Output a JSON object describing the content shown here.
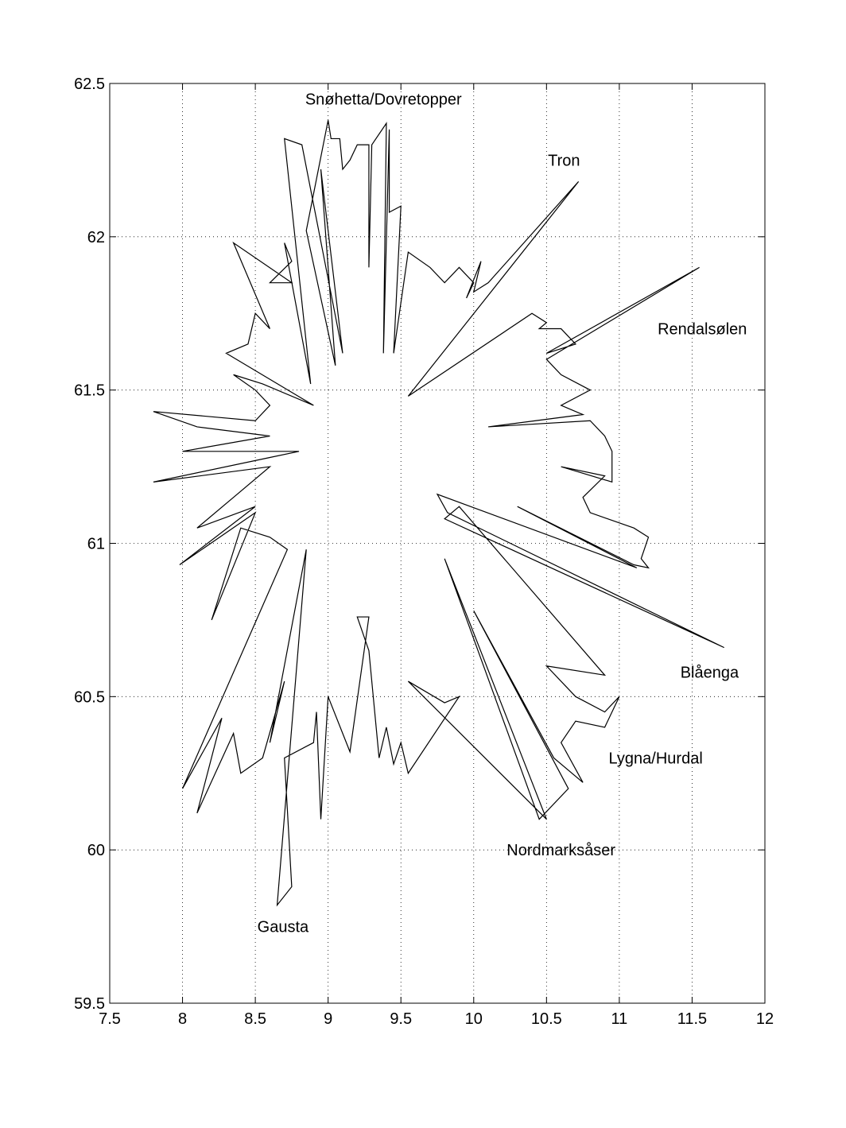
{
  "chart_data": {
    "type": "line",
    "xlim": [
      7.5,
      12
    ],
    "ylim": [
      59.5,
      62.5
    ],
    "xticks": [
      7.5,
      8,
      8.5,
      9,
      9.5,
      10,
      10.5,
      11,
      11.5,
      12
    ],
    "yticks": [
      59.5,
      60,
      60.5,
      61,
      61.5,
      62,
      62.5
    ],
    "grid": true,
    "series": [
      {
        "color": "#000000",
        "x": [
          9.0,
          9.02,
          9.08,
          9.1,
          9.15,
          9.2,
          9.28,
          9.28,
          9.3,
          9.4,
          9.38,
          9.42,
          9.42,
          9.5,
          9.45,
          9.55,
          9.7,
          9.8,
          9.9,
          10.0,
          9.95,
          10.05,
          10.0,
          10.1,
          10.72,
          9.55,
          10.4,
          10.5,
          10.45,
          10.6,
          10.7,
          10.5,
          11.55,
          10.5,
          10.6,
          10.8,
          10.6,
          10.75,
          10.1,
          10.8,
          10.9,
          10.95,
          10.95,
          10.6,
          10.9,
          10.75,
          10.8,
          11.1,
          11.2,
          11.15,
          11.2,
          11.1,
          10.3,
          11.12,
          9.75,
          9.82,
          11.72,
          9.8,
          9.9,
          10.9,
          10.5,
          10.7,
          10.9,
          11.0,
          10.9,
          10.7,
          10.6,
          10.75,
          10.55,
          10.0,
          10.65,
          10.45,
          9.8,
          10.5,
          9.55,
          9.8,
          9.9,
          9.55,
          9.5,
          9.45,
          9.4,
          9.35,
          9.28,
          9.2,
          9.28,
          9.15,
          9.0,
          8.95,
          8.92,
          8.9,
          8.7,
          8.75,
          8.65,
          8.85,
          8.6,
          8.7,
          8.55,
          8.4,
          8.35,
          8.1,
          8.27,
          8.0,
          8.72,
          8.6,
          8.4,
          8.2,
          8.5,
          7.98,
          8.5,
          8.1,
          8.35,
          8.6,
          7.8,
          8.6,
          8.8,
          8.0,
          8.6,
          8.1,
          7.8,
          8.5,
          8.6,
          8.5,
          8.35,
          8.55,
          8.9,
          8.3,
          8.45,
          8.5,
          8.6,
          8.35,
          8.75,
          8.6,
          8.75,
          8.7,
          8.88,
          8.7,
          8.82,
          9.1,
          8.95,
          9.05,
          8.85,
          9.0
        ],
        "values": [
          62.38,
          62.32,
          62.32,
          62.22,
          62.25,
          62.3,
          62.3,
          61.9,
          62.3,
          62.37,
          61.62,
          62.35,
          62.08,
          62.1,
          61.62,
          61.95,
          61.9,
          61.85,
          61.9,
          61.85,
          61.8,
          61.92,
          61.82,
          61.85,
          62.18,
          61.48,
          61.75,
          61.72,
          61.7,
          61.7,
          61.65,
          61.62,
          61.9,
          61.6,
          61.55,
          61.5,
          61.45,
          61.42,
          61.38,
          61.4,
          61.35,
          61.3,
          61.2,
          61.25,
          61.22,
          61.15,
          61.1,
          61.05,
          61.02,
          60.95,
          60.92,
          60.93,
          61.12,
          60.92,
          61.16,
          61.1,
          60.66,
          61.08,
          61.12,
          60.57,
          60.6,
          60.5,
          60.45,
          60.5,
          60.4,
          60.42,
          60.35,
          60.22,
          60.3,
          60.78,
          60.2,
          60.1,
          60.95,
          60.1,
          60.55,
          60.48,
          60.5,
          60.25,
          60.35,
          60.28,
          60.4,
          60.3,
          60.65,
          60.76,
          60.76,
          60.32,
          60.5,
          60.1,
          60.45,
          60.35,
          60.3,
          59.88,
          59.82,
          60.98,
          60.35,
          60.55,
          60.3,
          60.25,
          60.38,
          60.12,
          60.43,
          60.2,
          60.98,
          61.02,
          61.05,
          60.75,
          61.1,
          60.93,
          61.12,
          61.05,
          61.15,
          61.25,
          61.2,
          61.28,
          61.3,
          61.3,
          61.35,
          61.38,
          61.43,
          61.4,
          61.45,
          61.5,
          61.55,
          61.52,
          61.45,
          61.62,
          61.65,
          61.75,
          61.7,
          61.98,
          61.85,
          61.85,
          61.92,
          61.98,
          61.52,
          62.32,
          62.3,
          61.62,
          62.22,
          61.58,
          62.02,
          62.38
        ]
      }
    ],
    "annotations": [
      {
        "text": "Snøhetta/Dovretopper",
        "x": 9.38,
        "y": 62.45
      },
      {
        "text": "Tron",
        "x": 10.62,
        "y": 62.25
      },
      {
        "text": "Rendalsølen",
        "x": 11.57,
        "y": 61.7
      },
      {
        "text": "Blåenga",
        "x": 11.62,
        "y": 60.58
      },
      {
        "text": "Lygna/Hurdal",
        "x": 11.25,
        "y": 60.3
      },
      {
        "text": "Nordmarksåser",
        "x": 10.6,
        "y": 60.0
      },
      {
        "text": "Gausta",
        "x": 8.69,
        "y": 59.75
      }
    ]
  }
}
